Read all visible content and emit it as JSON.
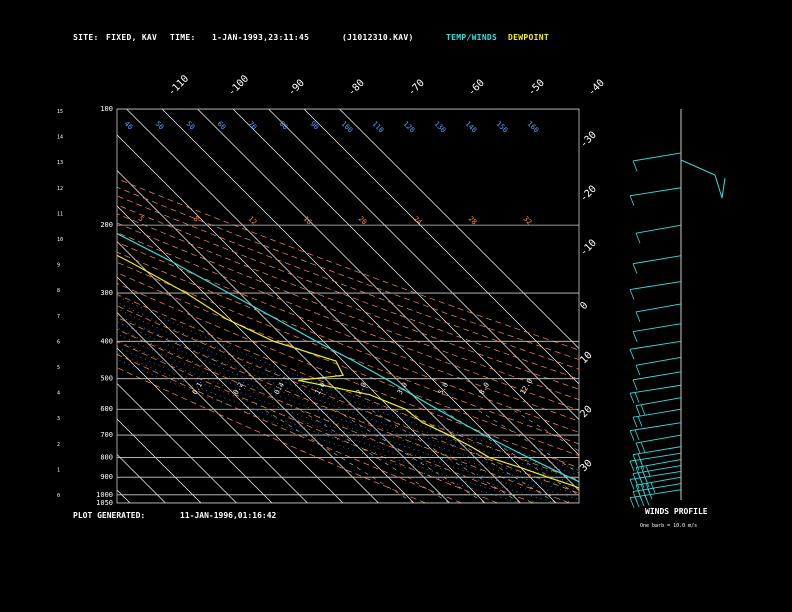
{
  "header": {
    "site_label": "SITE:",
    "site_value": "FIXED, KAV",
    "time_label": "TIME:",
    "time_value": "1-JAN-1993,23:11:45",
    "file_id": "(J1012310.KAV)",
    "temp_winds_label": "TEMP/WINDS",
    "dewpoint_label": "DEWPOINT"
  },
  "footer": {
    "generated_label": "PLOT GENERATED:",
    "generated_value": "11-JAN-1996,01:16:42"
  },
  "winds": {
    "title": "WINDS PROFILE",
    "note": "One barb = 10.0 m/s"
  },
  "colors": {
    "temperature": "#33dddd",
    "dewpoint": "#eeee22",
    "isotherm": "#ffffff",
    "dry_adiabat": "#ff8c42",
    "mixing_ratio": "#ff8c42",
    "moist_adiabat": "#5aa0ff",
    "pressure_line": "#cccccc",
    "wind_barb": "#33dddd"
  },
  "chart_data": {
    "type": "line",
    "title": "",
    "diagram": "skew-T log-P",
    "pressure_range_hpa": [
      100,
      1050
    ],
    "pressure_levels": [
      100,
      200,
      300,
      400,
      500,
      600,
      700,
      800,
      900,
      1000,
      1050
    ],
    "pressure_labels": [
      "100",
      "200",
      "300",
      "400",
      "500",
      "600",
      "700",
      "800",
      "900",
      "1000",
      "1050"
    ],
    "height_km_labels": [
      "0",
      "1",
      "2",
      "3",
      "4",
      "5",
      "6",
      "7",
      "8",
      "9",
      "10",
      "11",
      "12",
      "13",
      "14",
      "15"
    ],
    "isotherm_top_labels": [
      "-110",
      "-100",
      "-90",
      "-80",
      "-70",
      "-60",
      "-50",
      "-40"
    ],
    "isotherm_right_labels": [
      "-30",
      "-20",
      "-10",
      "0",
      "10",
      "20",
      "30"
    ],
    "moist_adiabat_labels": [
      "40",
      "50",
      "50",
      "60",
      "70",
      "80",
      "90",
      "100",
      "110",
      "120",
      "130",
      "140",
      "150",
      "160"
    ],
    "dry_adiabat_labels": [
      "5",
      "8",
      "12",
      "16",
      "20",
      "24",
      "28",
      "32"
    ],
    "mixing_ratio_labels": [
      "0.1",
      "0.2",
      "0.4",
      "1.0",
      "2.0",
      "3.0",
      "5.0",
      "8.0",
      "12.0"
    ],
    "series": [
      {
        "name": "TEMP/WINDS",
        "points": [
          [
            1035,
            18
          ],
          [
            1000,
            16
          ],
          [
            950,
            14
          ],
          [
            900,
            11
          ],
          [
            850,
            8
          ],
          [
            800,
            5
          ],
          [
            750,
            2
          ],
          [
            700,
            -1
          ],
          [
            650,
            -4
          ],
          [
            600,
            -7
          ],
          [
            550,
            -10
          ],
          [
            500,
            -13
          ],
          [
            450,
            -17
          ],
          [
            400,
            -22
          ],
          [
            350,
            -27
          ],
          [
            300,
            -33
          ],
          [
            250,
            -40
          ],
          [
            200,
            -50
          ],
          [
            170,
            -58
          ],
          [
            150,
            -62
          ],
          [
            120,
            -65
          ],
          [
            100,
            -68
          ]
        ]
      },
      {
        "name": "DEWPOINT",
        "points": [
          [
            1035,
            15
          ],
          [
            1000,
            13
          ],
          [
            950,
            10
          ],
          [
            900,
            5
          ],
          [
            850,
            0
          ],
          [
            800,
            -6
          ],
          [
            750,
            -8
          ],
          [
            700,
            -11
          ],
          [
            650,
            -15
          ],
          [
            600,
            -16
          ],
          [
            550,
            -22
          ],
          [
            505,
            -38
          ],
          [
            490,
            -24
          ],
          [
            450,
            -22
          ],
          [
            400,
            -34
          ],
          [
            350,
            -41
          ],
          [
            300,
            -45
          ],
          [
            250,
            -52
          ],
          [
            200,
            -62
          ],
          [
            170,
            -72
          ],
          [
            150,
            -82
          ],
          [
            120,
            -90
          ],
          [
            100,
            -90
          ]
        ]
      }
    ],
    "wind_barbs": [
      {
        "p": 970,
        "barbs": 4
      },
      {
        "p": 935,
        "barbs": 4
      },
      {
        "p": 900,
        "barbs": 4
      },
      {
        "p": 870,
        "barbs": 4
      },
      {
        "p": 840,
        "barbs": 3
      },
      {
        "p": 810,
        "barbs": 3
      },
      {
        "p": 780,
        "barbs": 3
      },
      {
        "p": 750,
        "barbs": 2
      },
      {
        "p": 700,
        "barbs": 2
      },
      {
        "p": 650,
        "barbs": 2
      },
      {
        "p": 600,
        "barbs": 2
      },
      {
        "p": 560,
        "barbs": 2
      },
      {
        "p": 520,
        "barbs": 2
      },
      {
        "p": 480,
        "barbs": 1
      },
      {
        "p": 440,
        "barbs": 1
      },
      {
        "p": 400,
        "barbs": 1
      },
      {
        "p": 360,
        "barbs": 1
      },
      {
        "p": 320,
        "barbs": 1
      },
      {
        "p": 280,
        "barbs": 1
      },
      {
        "p": 240,
        "barbs": 1
      },
      {
        "p": 200,
        "barbs": 1
      },
      {
        "p": 160,
        "barbs": 1
      },
      {
        "p": 130,
        "barbs": 1
      }
    ]
  }
}
